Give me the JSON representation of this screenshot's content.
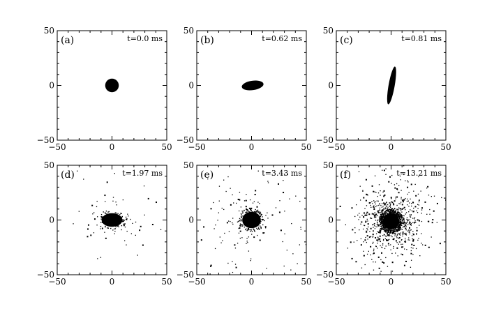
{
  "chart_data": {
    "type": "scatter",
    "xlim": [
      -50,
      50
    ],
    "ylim": [
      -50,
      50
    ],
    "x_ticks": [
      -50,
      0,
      50
    ],
    "y_ticks": [
      -50,
      0,
      50
    ],
    "x_tick_labels": [
      "−50",
      "0",
      "50"
    ],
    "y_tick_labels": [
      "−50",
      "0",
      "50"
    ],
    "grid": false,
    "panels": [
      {
        "label": "(a)",
        "time": "t=0.0 ms",
        "blob_center": [
          0,
          0
        ],
        "blob_radii": [
          6.2,
          6.2
        ],
        "blob_rotation": 0,
        "scatter_count": 0,
        "scatter_spread": 0
      },
      {
        "label": "(b)",
        "time": "t=0.62 ms",
        "blob_center": [
          1,
          0
        ],
        "blob_radii": [
          10,
          4.3
        ],
        "blob_rotation": -8,
        "scatter_count": 0,
        "scatter_spread": 0
      },
      {
        "label": "(c)",
        "time": "t=0.81 ms",
        "blob_center": [
          0.5,
          0
        ],
        "blob_radii": [
          2.8,
          17.5
        ],
        "blob_rotation": 10,
        "scatter_count": 0,
        "scatter_spread": 0
      },
      {
        "label": "(d)",
        "time": "t=1.97 ms",
        "blob_center": [
          0,
          0
        ],
        "blob_radii": [
          9.5,
          6.2
        ],
        "blob_rotation": 0,
        "scatter_count": 70,
        "scatter_spread": 26
      },
      {
        "label": "(e)",
        "time": "t=3.43 ms",
        "blob_center": [
          0,
          0
        ],
        "blob_radii": [
          8.5,
          7.5
        ],
        "blob_rotation": 0,
        "scatter_count": 150,
        "scatter_spread": 34
      },
      {
        "label": "(f)",
        "time": "t=13.21 ms",
        "blob_center": [
          0,
          -1
        ],
        "blob_radii": [
          7.5,
          7.5
        ],
        "blob_rotation": 0,
        "scatter_count": 650,
        "scatter_spread": 24
      }
    ]
  }
}
